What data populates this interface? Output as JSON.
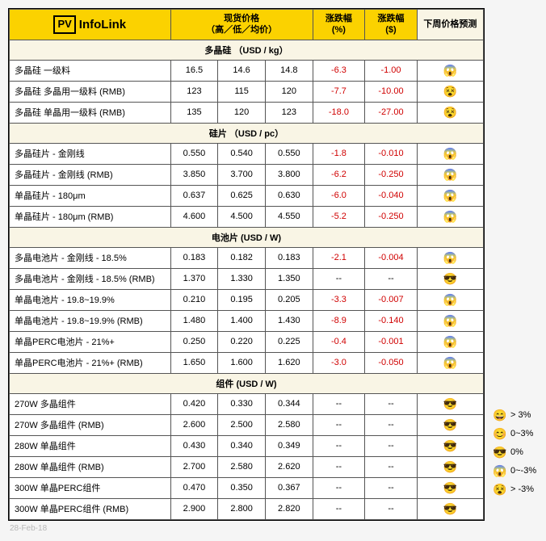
{
  "logo": {
    "box": "PV",
    "text": "InfoLink"
  },
  "headers": {
    "price": "现货价格",
    "price_sub": "（高／低／均价）",
    "chg_pct": "涨跌幅\n(%)",
    "chg_usd": "涨跌幅\n($)",
    "forecast": "下周价格预测"
  },
  "sections": [
    {
      "title": "多晶硅 （USD / kg）",
      "rows": [
        {
          "name": "多晶硅 一级料",
          "hi": "16.5",
          "lo": "14.6",
          "avg": "14.8",
          "pct": "-6.3",
          "usd": "-1.00",
          "icon": "😱"
        },
        {
          "name": "多晶硅 多晶用一级料 (RMB)",
          "hi": "123",
          "lo": "115",
          "avg": "120",
          "pct": "-7.7",
          "usd": "-10.00",
          "icon": "😵"
        },
        {
          "name": "多晶硅 单晶用一级料 (RMB)",
          "hi": "135",
          "lo": "120",
          "avg": "123",
          "pct": "-18.0",
          "usd": "-27.00",
          "icon": "😵"
        }
      ]
    },
    {
      "title": "硅片 （USD / pc）",
      "rows": [
        {
          "name": "多晶硅片 - 金刚线",
          "hi": "0.550",
          "lo": "0.540",
          "avg": "0.550",
          "pct": "-1.8",
          "usd": "-0.010",
          "icon": "😱"
        },
        {
          "name": "多晶硅片 - 金刚线 (RMB)",
          "hi": "3.850",
          "lo": "3.700",
          "avg": "3.800",
          "pct": "-6.2",
          "usd": "-0.250",
          "icon": "😱"
        },
        {
          "name": "单晶硅片 - 180μm",
          "hi": "0.637",
          "lo": "0.625",
          "avg": "0.630",
          "pct": "-6.0",
          "usd": "-0.040",
          "icon": "😱"
        },
        {
          "name": "单晶硅片 - 180μm (RMB)",
          "hi": "4.600",
          "lo": "4.500",
          "avg": "4.550",
          "pct": "-5.2",
          "usd": "-0.250",
          "icon": "😱"
        }
      ]
    },
    {
      "title": "电池片 (USD / W)",
      "rows": [
        {
          "name": "多晶电池片 - 金刚线 - 18.5%",
          "hi": "0.183",
          "lo": "0.182",
          "avg": "0.183",
          "pct": "-2.1",
          "usd": "-0.004",
          "icon": "😱"
        },
        {
          "name": "多晶电池片 - 金刚线 - 18.5% (RMB)",
          "hi": "1.370",
          "lo": "1.330",
          "avg": "1.350",
          "pct": "--",
          "usd": "--",
          "icon": "😎",
          "neutral": true
        },
        {
          "name": "单晶电池片 - 19.8~19.9%",
          "hi": "0.210",
          "lo": "0.195",
          "avg": "0.205",
          "pct": "-3.3",
          "usd": "-0.007",
          "icon": "😱"
        },
        {
          "name": "单晶电池片 - 19.8~19.9% (RMB)",
          "hi": "1.480",
          "lo": "1.400",
          "avg": "1.430",
          "pct": "-8.9",
          "usd": "-0.140",
          "icon": "😱"
        },
        {
          "name": "单晶PERC电池片 - 21%+",
          "hi": "0.250",
          "lo": "0.220",
          "avg": "0.225",
          "pct": "-0.4",
          "usd": "-0.001",
          "icon": "😱"
        },
        {
          "name": "单晶PERC电池片 - 21%+ (RMB)",
          "hi": "1.650",
          "lo": "1.600",
          "avg": "1.620",
          "pct": "-3.0",
          "usd": "-0.050",
          "icon": "😱"
        }
      ]
    },
    {
      "title": "组件 (USD / W)",
      "rows": [
        {
          "name": "270W 多晶组件",
          "hi": "0.420",
          "lo": "0.330",
          "avg": "0.344",
          "pct": "--",
          "usd": "--",
          "icon": "😎",
          "neutral": true
        },
        {
          "name": "270W 多晶组件 (RMB)",
          "hi": "2.600",
          "lo": "2.500",
          "avg": "2.580",
          "pct": "--",
          "usd": "--",
          "icon": "😎",
          "neutral": true
        },
        {
          "name": "280W 单晶组件",
          "hi": "0.430",
          "lo": "0.340",
          "avg": "0.349",
          "pct": "--",
          "usd": "--",
          "icon": "😎",
          "neutral": true
        },
        {
          "name": "280W 单晶组件 (RMB)",
          "hi": "2.700",
          "lo": "2.580",
          "avg": "2.620",
          "pct": "--",
          "usd": "--",
          "icon": "😎",
          "neutral": true
        },
        {
          "name": "300W 单晶PERC组件",
          "hi": "0.470",
          "lo": "0.350",
          "avg": "0.367",
          "pct": "--",
          "usd": "--",
          "icon": "😎",
          "neutral": true
        },
        {
          "name": "300W 单晶PERC组件 (RMB)",
          "hi": "2.900",
          "lo": "2.800",
          "avg": "2.820",
          "pct": "--",
          "usd": "--",
          "icon": "😎",
          "neutral": true
        }
      ]
    }
  ],
  "legend": [
    {
      "icon": "😄",
      "label": "> 3%"
    },
    {
      "icon": "😊",
      "label": "0~3%"
    },
    {
      "icon": "😎",
      "label": "0%"
    },
    {
      "icon": "😱",
      "label": "0~-3%"
    },
    {
      "icon": "😵",
      "label": "> -3%"
    }
  ],
  "footer_date": "28-Feb-18",
  "colors": {
    "header_yellow": "#fbd200",
    "header_beige": "#f9f5e5",
    "border": "#555555",
    "negative": "#d00000",
    "footer_grey": "#b8b8b8"
  }
}
